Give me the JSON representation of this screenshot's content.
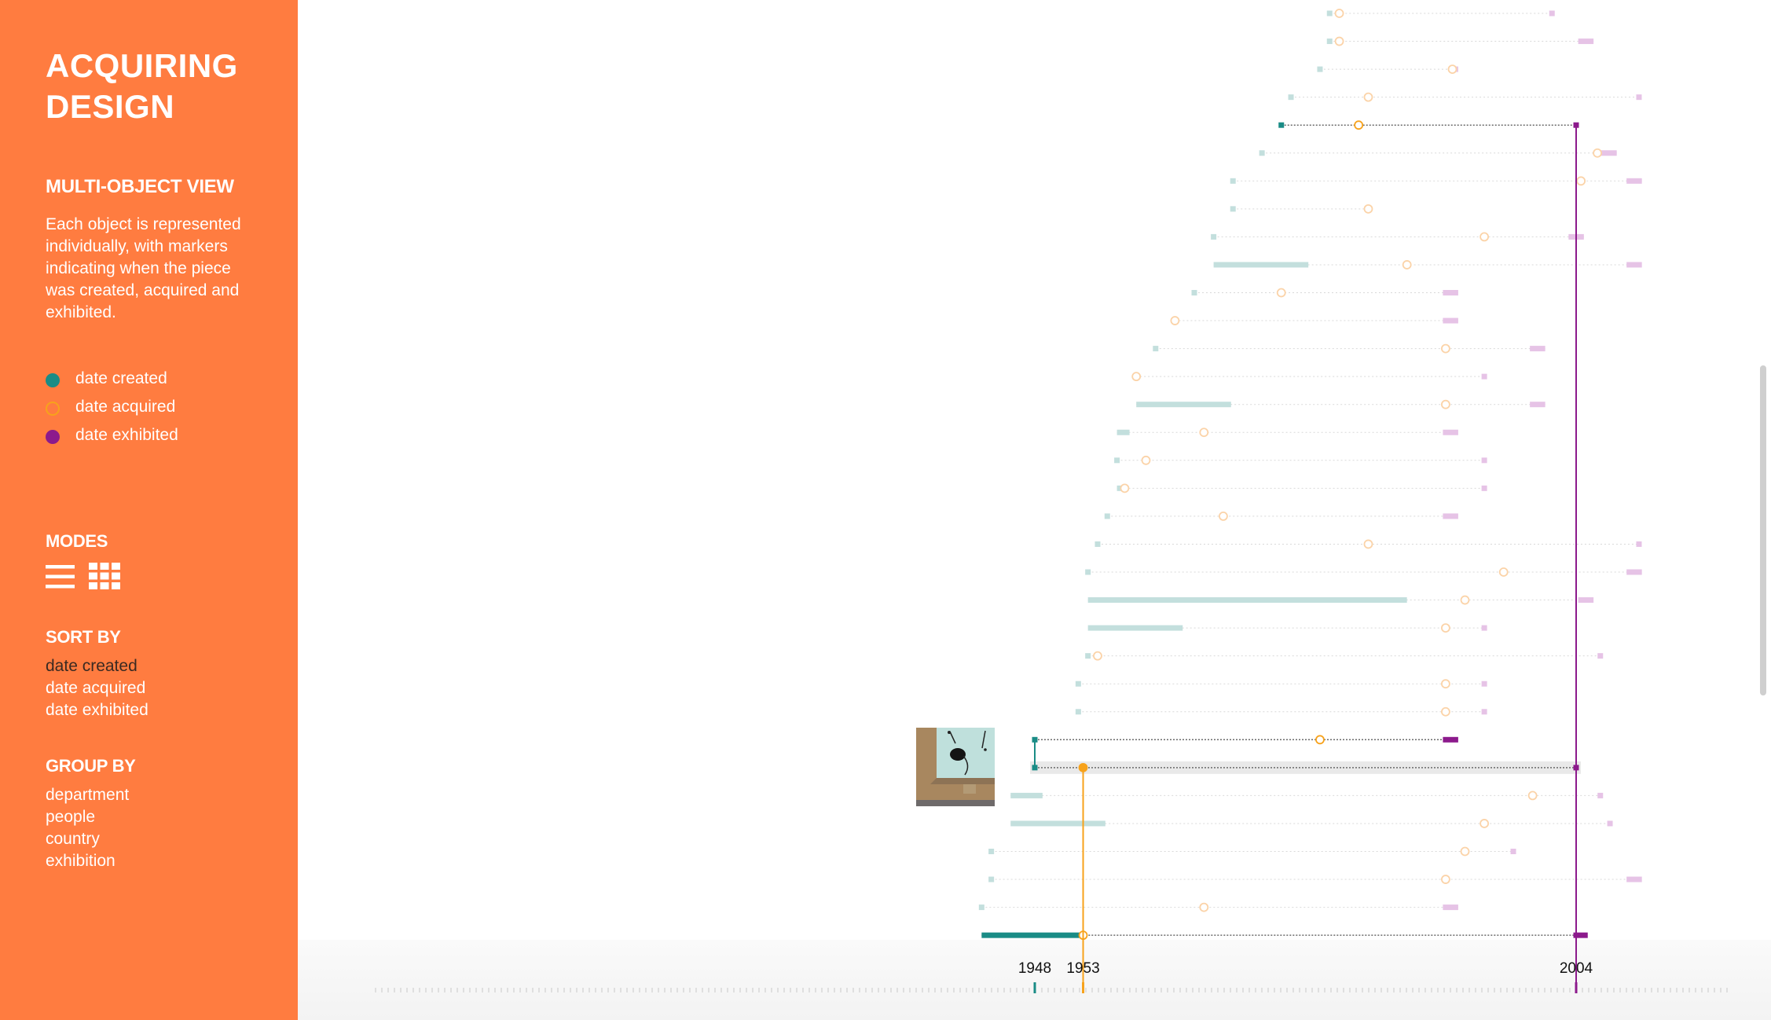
{
  "sidebar": {
    "title_line1": "ACQUIRING",
    "title_line2": "DESIGN",
    "view_heading": "MULTI-OBJECT VIEW",
    "view_description": "Each object is represented individually, with markers indicating when the piece was created, acquired and exhibited.",
    "legend": [
      {
        "label": "date created",
        "color": "#1a8c86",
        "shape": "filled-circle"
      },
      {
        "label": "date acquired",
        "color": "#f7a21b",
        "shape": "hollow-circle"
      },
      {
        "label": "date exhibited",
        "color": "#8c1a8c",
        "shape": "filled-circle"
      }
    ],
    "modes_heading": "MODES",
    "modes": [
      {
        "name": "list-mode",
        "icon": "list-icon"
      },
      {
        "name": "grid-mode",
        "icon": "grid-icon"
      }
    ],
    "sort_heading": "SORT BY",
    "sort_options": [
      "date created",
      "date acquired",
      "date exhibited"
    ],
    "sort_selected": "date created",
    "group_heading": "GROUP BY",
    "group_options": [
      "department",
      "people",
      "country",
      "exhibition"
    ]
  },
  "colors": {
    "sidebar_bg": "#ff7c40",
    "created": "#1a8c86",
    "created_faded": "#c3dfdd",
    "acquired": "#f7a21b",
    "acquired_faded": "#fbd3a8",
    "exhibited": "#8c1a8c",
    "exhibited_faded": "#e6c3e6"
  },
  "chart_data": {
    "type": "timeline",
    "x_scale": {
      "year_a": 1948,
      "year_b": 2004
    },
    "axis_year_labels": [
      1948,
      1953,
      2004
    ],
    "highlighted_object": {
      "created": 1948,
      "acquired": 1953,
      "exhibited": 2004
    },
    "rows": [
      {
        "c": 1978.5,
        "a": 1979.5,
        "e": [
          2001.5,
          2001.5
        ],
        "h": false
      },
      {
        "c": 1978.5,
        "a": 1979.5,
        "e": [
          2004.5,
          2005.8
        ],
        "h": false
      },
      {
        "c": 1977.5,
        "a": 1991.2,
        "e": [
          1991.2,
          1991.8
        ],
        "h": false
      },
      {
        "c": 1974.5,
        "a": 1982.5,
        "e": [
          2010.5,
          2010.5
        ],
        "h": false
      },
      {
        "c": 1973.5,
        "a": 1981.5,
        "e": [
          2004,
          2004
        ],
        "h": true
      },
      {
        "c": 1971.5,
        "a": 2006.2,
        "e": [
          2006.8,
          2008.2
        ],
        "h": false
      },
      {
        "c": 1968.5,
        "a": 2004.5,
        "e": [
          2009.5,
          2010.8
        ],
        "h": false
      },
      {
        "c": 1968.5,
        "a": 1982.5,
        "e": [],
        "h": false
      },
      {
        "c": 1966.5,
        "a": 1994.5,
        "e": [
          2003.5,
          2004.8
        ],
        "h": false
      },
      {
        "c": [
          1966.5,
          1976.3
        ],
        "a": 1986.5,
        "e": [
          2009.5,
          2010.8
        ],
        "h": false
      },
      {
        "c": 1964.5,
        "a": 1973.5,
        "e": [
          1990.5,
          1991.8
        ],
        "h": false
      },
      {
        "c": null,
        "a": 1962.5,
        "e": [
          1990.5,
          1991.8
        ],
        "h": false
      },
      {
        "c": 1960.5,
        "a": 1990.5,
        "e": [
          1999.5,
          2000.8
        ],
        "h": false
      },
      {
        "c": null,
        "a": 1958.5,
        "e": [
          1994.5,
          1994.5
        ],
        "h": false
      },
      {
        "c": [
          1958.5,
          1968.3
        ],
        "a": 1990.5,
        "e": [
          1999.5,
          2000.8
        ],
        "h": false
      },
      {
        "c": [
          1956.5,
          1957.8
        ],
        "a": 1965.5,
        "e": [
          1990.5,
          1991.8
        ],
        "h": false
      },
      {
        "c": 1956.5,
        "a": 1959.5,
        "e": [
          1994.5,
          1994.5
        ],
        "h": false
      },
      {
        "c": [
          1956.5,
          1957.3
        ],
        "a": 1957.3,
        "e": [
          1994.5,
          1994.5
        ],
        "h": false
      },
      {
        "c": 1955.5,
        "a": 1967.5,
        "e": [
          1990.5,
          1991.8
        ],
        "h": false
      },
      {
        "c": 1954.5,
        "a": 1982.5,
        "e": [
          2010.5,
          2010.5
        ],
        "h": false
      },
      {
        "c": 1953.5,
        "a": 1996.5,
        "e": [
          2009.5,
          2010.8
        ],
        "h": false
      },
      {
        "c": [
          1953.5,
          1986.5
        ],
        "a": 1992.5,
        "e": [
          2004.5,
          2005.8
        ],
        "h": false
      },
      {
        "c": [
          1953.5,
          1963.3
        ],
        "a": 1990.5,
        "e": [
          1994.5,
          1994.5
        ],
        "h": false
      },
      {
        "c": 1953.5,
        "a": 1954.5,
        "e": [
          2006.5,
          2006.5
        ],
        "h": false
      },
      {
        "c": 1952.5,
        "a": 1990.5,
        "e": [
          1994.5,
          1994.5
        ],
        "h": false
      },
      {
        "c": 1952.5,
        "a": 1990.5,
        "e": [
          1994.5,
          1994.5
        ],
        "h": false
      },
      {
        "c": 1948,
        "a": 1977.5,
        "e": [
          1990.5,
          1991.8
        ],
        "h": true
      },
      {
        "c": 1948,
        "a": 1953,
        "e": [
          2004,
          2004
        ],
        "h": true,
        "selected": true
      },
      {
        "c": [
          1945.5,
          1948.8
        ],
        "a": 1999.5,
        "e": [
          2006.5,
          2006.5
        ],
        "h": false
      },
      {
        "c": [
          1945.5,
          1955.3
        ],
        "a": 1994.5,
        "e": [
          2007.5,
          2007.5
        ],
        "h": false
      },
      {
        "c": 1943.5,
        "a": 1992.5,
        "e": [
          1997.5,
          1997.5
        ],
        "h": false
      },
      {
        "c": 1943.5,
        "a": 1990.5,
        "e": [
          2009.5,
          2010.8
        ],
        "h": false
      },
      {
        "c": 1942.5,
        "a": 1965.5,
        "e": [
          1990.5,
          1991.8
        ],
        "h": false
      },
      {
        "c": [
          1942.5,
          1953
        ],
        "a": 1953,
        "e": [
          2004,
          2005.2
        ],
        "h": true
      }
    ]
  }
}
